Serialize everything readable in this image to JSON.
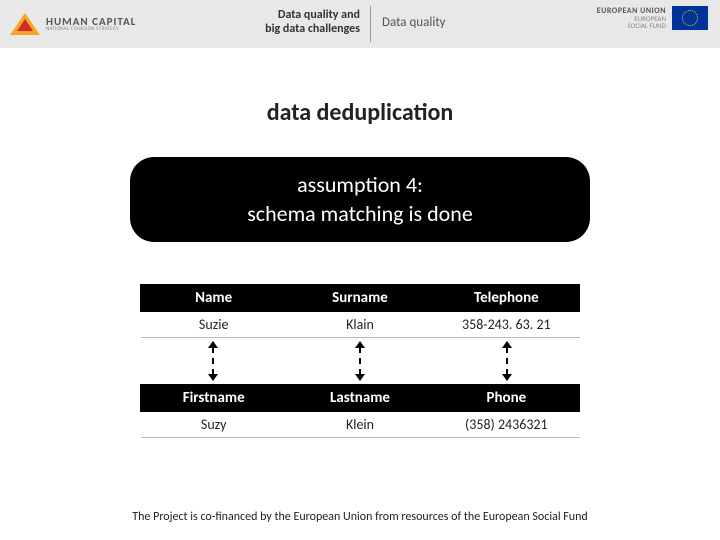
{
  "header": {
    "logo_title": "HUMAN CAPITAL",
    "logo_sub": "NATIONAL COHESION STRATEGY",
    "left_line1": "Data quality and",
    "left_line2": "big data challenges",
    "right_text": "Data quality",
    "eu_line1": "EUROPEAN UNION",
    "eu_line2a": "EUROPEAN",
    "eu_line2b": "SOCIAL FUND"
  },
  "title": "data deduplication",
  "assumption": {
    "line1": "assumption 4:",
    "line2": "schema matching is done"
  },
  "table1": {
    "headers": [
      "Name",
      "Surname",
      "Telephone"
    ],
    "row": [
      "Suzie",
      "Klain",
      "358-243. 63. 21"
    ]
  },
  "table2": {
    "headers": [
      "Firstname",
      "Lastname",
      "Phone"
    ],
    "row": [
      "Suzy",
      "Klein",
      "(358) 2436321"
    ]
  },
  "footer": "The Project is co-financed by the European Union from resources of the European Social Fund",
  "colors": {
    "header_bg": "#e8e8e8",
    "pill_bg": "#000000",
    "pill_text": "#ffffff",
    "th_bg": "#000000",
    "th_text": "#ffffff",
    "text": "#222222",
    "eu_flag_bg": "#003399",
    "eu_flag_stars": "#ffcc00"
  }
}
